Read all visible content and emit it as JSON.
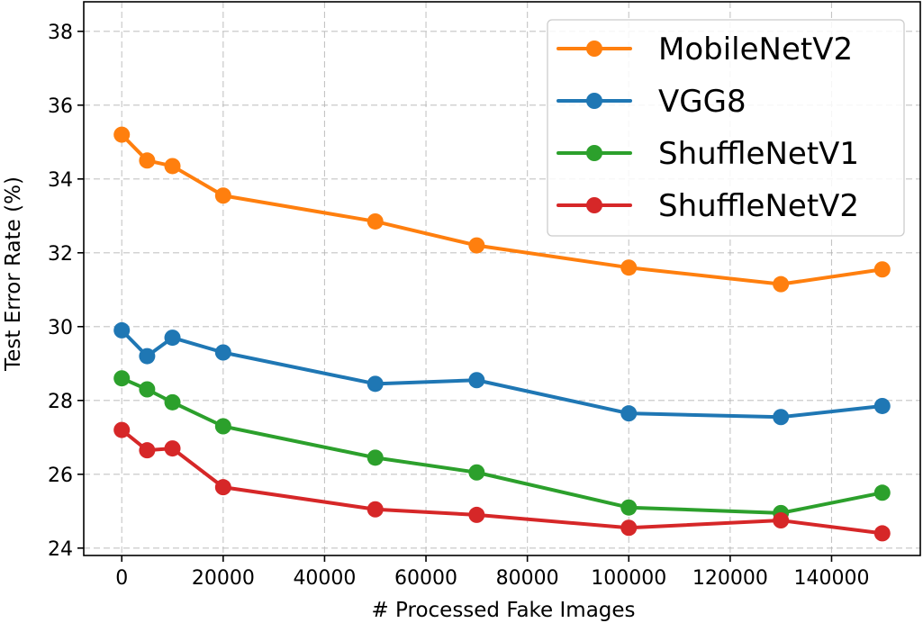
{
  "chart_data": {
    "type": "line",
    "xlabel": "# Processed Fake Images",
    "ylabel": "Test Error Rate (%)",
    "xlim": [
      -7500,
      157500
    ],
    "ylim": [
      23.8,
      38.8
    ],
    "x_ticks": [
      0,
      20000,
      40000,
      60000,
      80000,
      100000,
      120000,
      140000
    ],
    "y_ticks": [
      24,
      26,
      28,
      30,
      32,
      34,
      36,
      38
    ],
    "grid": true,
    "grid_style": "dashed",
    "legend_position": "top-right",
    "x": [
      0,
      5000,
      10000,
      20000,
      50000,
      70000,
      100000,
      130000,
      150000
    ],
    "series": [
      {
        "name": "MobileNetV2",
        "color": "#ff7f0e",
        "values": [
          35.2,
          34.5,
          34.35,
          33.55,
          32.85,
          32.2,
          31.6,
          31.15,
          31.55
        ]
      },
      {
        "name": "VGG8",
        "color": "#1f77b4",
        "values": [
          29.9,
          29.2,
          29.7,
          29.3,
          28.45,
          28.55,
          27.65,
          27.55,
          27.85
        ]
      },
      {
        "name": "ShuffleNetV1",
        "color": "#2ca02c",
        "values": [
          28.6,
          28.3,
          27.95,
          27.3,
          26.45,
          26.05,
          25.1,
          24.95,
          25.5
        ]
      },
      {
        "name": "ShuffleNetV2",
        "color": "#d62728",
        "values": [
          27.2,
          26.65,
          26.7,
          25.65,
          25.05,
          24.9,
          24.55,
          24.75,
          24.4
        ]
      }
    ]
  }
}
